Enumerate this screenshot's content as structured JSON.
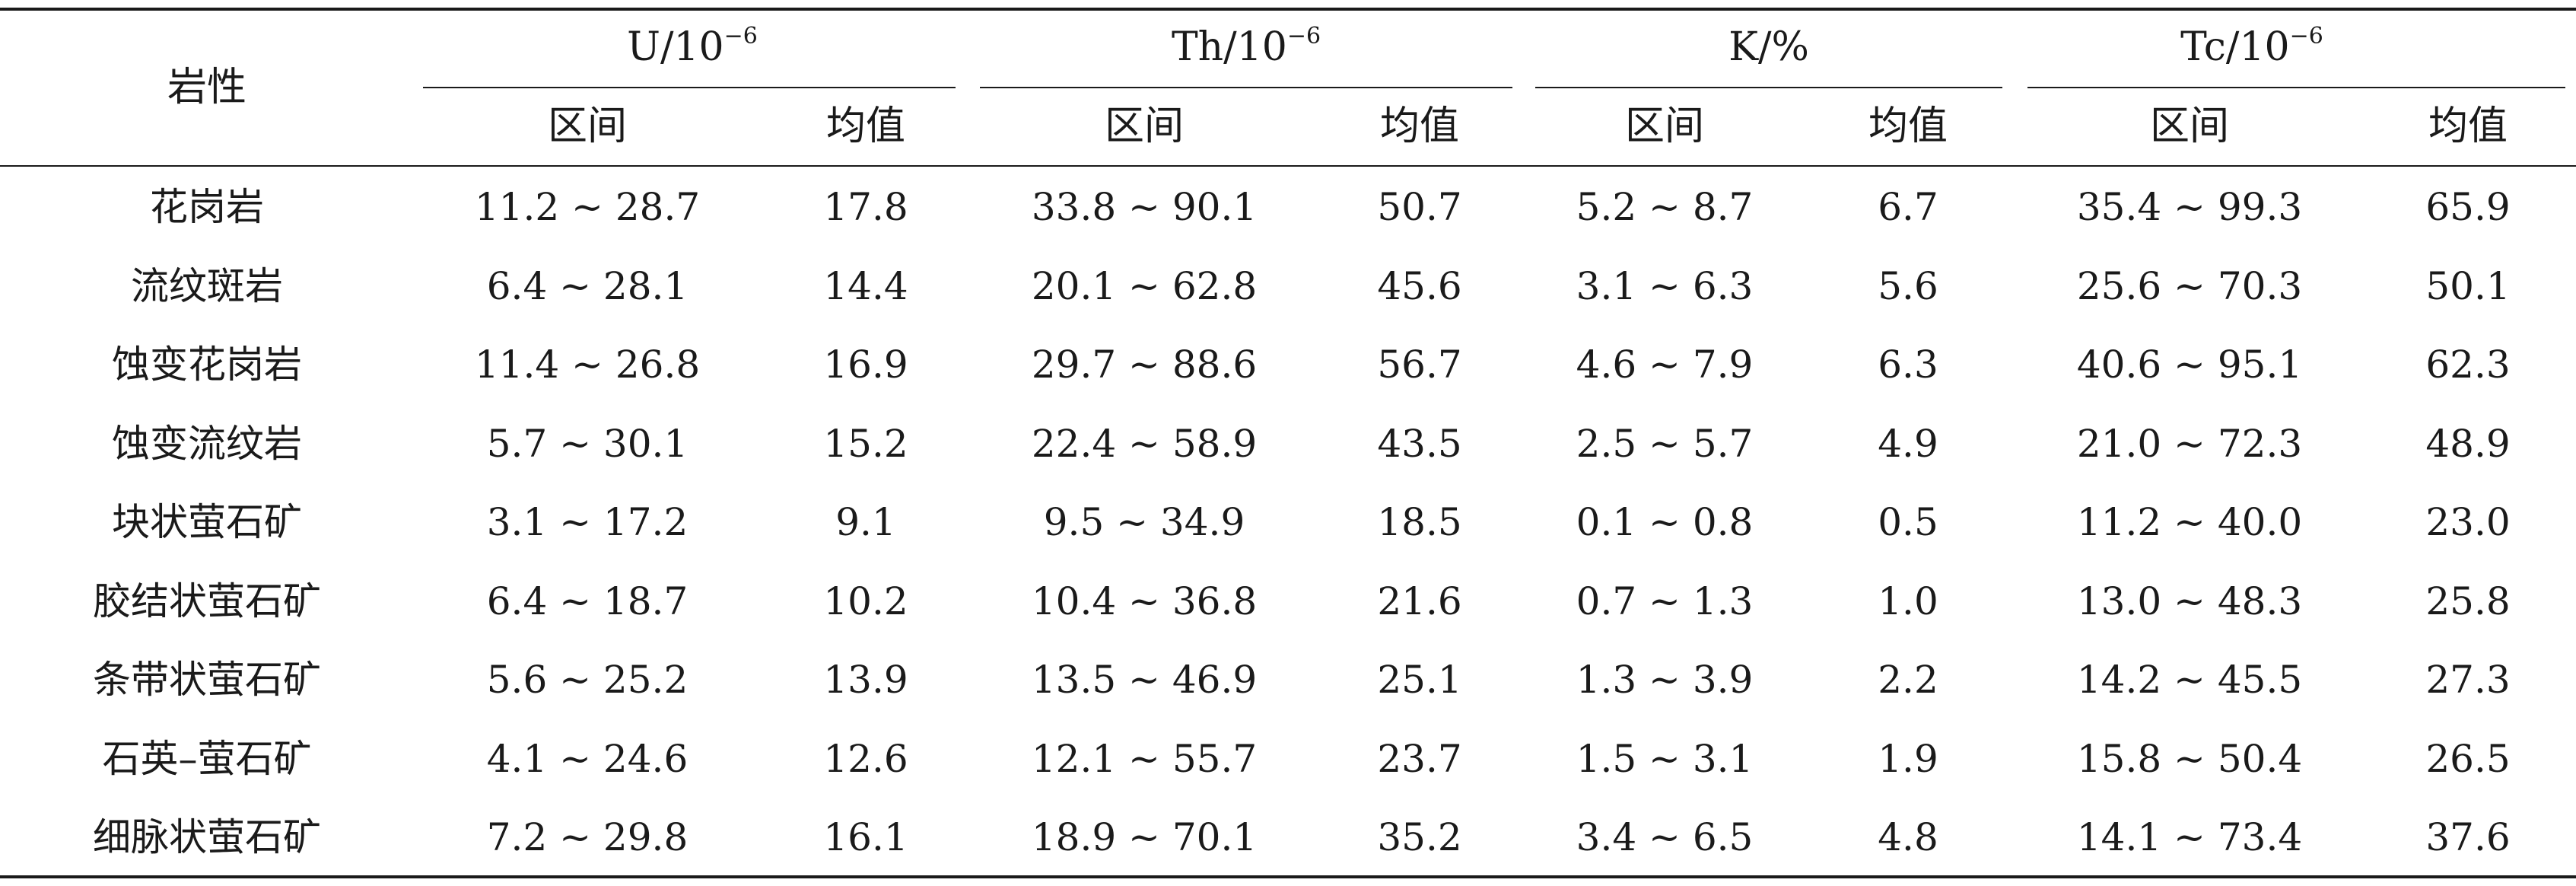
{
  "table": {
    "row_header": "岩性",
    "groups": [
      {
        "base": "U/10",
        "exp": "−6"
      },
      {
        "base": "Th/10",
        "exp": "−6"
      },
      {
        "base": "K/%",
        "exp": ""
      },
      {
        "base": "Tc/10",
        "exp": "−6"
      }
    ],
    "subheaders": [
      "区间",
      "均值",
      "区间",
      "均值",
      "区间",
      "均值",
      "区间",
      "均值"
    ],
    "rows": [
      {
        "name": "花岗岩",
        "values": [
          "11.2 ~ 28.7",
          "17.8",
          "33.8 ~ 90.1",
          "50.7",
          "5.2 ~ 8.7",
          "6.7",
          "35.4 ~ 99.3",
          "65.9"
        ]
      },
      {
        "name": "流纹斑岩",
        "values": [
          "6.4 ~ 28.1",
          "14.4",
          "20.1 ~ 62.8",
          "45.6",
          "3.1 ~ 6.3",
          "5.6",
          "25.6 ~ 70.3",
          "50.1"
        ]
      },
      {
        "name": "蚀变花岗岩",
        "values": [
          "11.4 ~ 26.8",
          "16.9",
          "29.7 ~ 88.6",
          "56.7",
          "4.6 ~ 7.9",
          "6.3",
          "40.6 ~ 95.1",
          "62.3"
        ]
      },
      {
        "name": "蚀变流纹岩",
        "values": [
          "5.7 ~ 30.1",
          "15.2",
          "22.4 ~ 58.9",
          "43.5",
          "2.5 ~ 5.7",
          "4.9",
          "21.0 ~ 72.3",
          "48.9"
        ]
      },
      {
        "name": "块状萤石矿",
        "values": [
          "3.1 ~ 17.2",
          "9.1",
          "9.5 ~ 34.9",
          "18.5",
          "0.1 ~ 0.8",
          "0.5",
          "11.2 ~ 40.0",
          "23.0"
        ]
      },
      {
        "name": "胶结状萤石矿",
        "values": [
          "6.4 ~ 18.7",
          "10.2",
          "10.4 ~ 36.8",
          "21.6",
          "0.7 ~ 1.3",
          "1.0",
          "13.0 ~ 48.3",
          "25.8"
        ]
      },
      {
        "name": "条带状萤石矿",
        "values": [
          "5.6 ~ 25.2",
          "13.9",
          "13.5 ~ 46.9",
          "25.1",
          "1.3 ~ 3.9",
          "2.2",
          "14.2 ~ 45.5",
          "27.3"
        ]
      },
      {
        "name": "石英–萤石矿",
        "values": [
          "4.1 ~ 24.6",
          "12.6",
          "12.1 ~ 55.7",
          "23.7",
          "1.5 ~ 3.1",
          "1.9",
          "15.8 ~ 50.4",
          "26.5"
        ]
      },
      {
        "name": "细脉状萤石矿",
        "values": [
          "7.2 ~ 29.8",
          "16.1",
          "18.9 ~ 70.1",
          "35.2",
          "3.4 ~ 6.5",
          "4.8",
          "14.1 ~ 73.4",
          "37.6"
        ]
      }
    ]
  }
}
